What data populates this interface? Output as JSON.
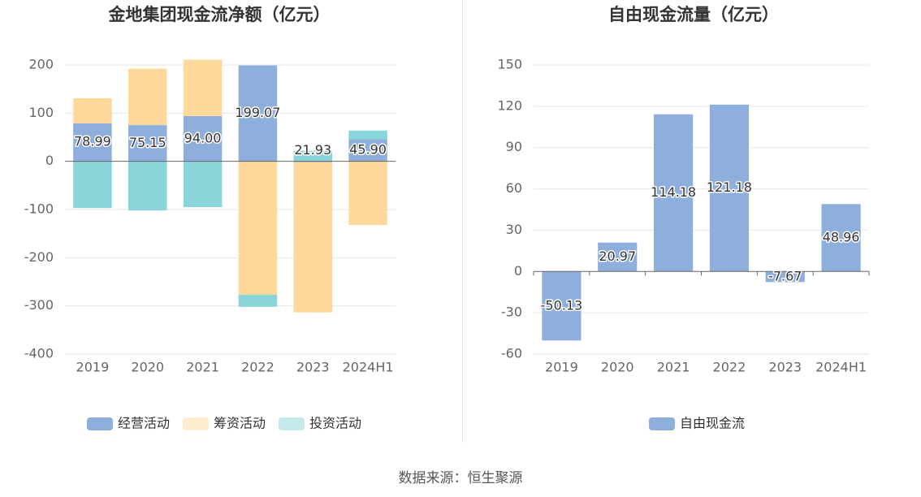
{
  "footer": {
    "source": "数据来源：恒生聚源"
  },
  "chart_data": [
    {
      "type": "bar",
      "stacked": true,
      "title": "金地集团现金流净额（亿元）",
      "categories": [
        "2019",
        "2020",
        "2021",
        "2022",
        "2023",
        "2024H1"
      ],
      "ylim": [
        -400,
        200
      ],
      "yticks": [
        200,
        100,
        0,
        -100,
        -200,
        -300,
        -400
      ],
      "grid": true,
      "legend_position": "bottom",
      "series": [
        {
          "name": "经营活动",
          "color": "#8eaedc",
          "values": [
            78.99,
            75.15,
            94.0,
            199.07,
            -1.5,
            45.9
          ]
        },
        {
          "name": "筹资活动",
          "color": "#ffd89c",
          "values": [
            52,
            117,
            117,
            -277,
            -312,
            -132
          ]
        },
        {
          "name": "投资活动",
          "color": "#8ad5d9",
          "values": [
            -97,
            -102,
            -95,
            -25,
            21.93,
            18
          ]
        }
      ],
      "data_labels": [
        "78.99",
        "75.15",
        "94.00",
        "199.07",
        "21.93",
        "45.90"
      ]
    },
    {
      "type": "bar",
      "title": "自由现金流量（亿元）",
      "categories": [
        "2019",
        "2020",
        "2021",
        "2022",
        "2023",
        "2024H1"
      ],
      "ylim": [
        -60,
        150
      ],
      "yticks": [
        150,
        120,
        90,
        60,
        30,
        0,
        -30,
        -60
      ],
      "grid": true,
      "legend_position": "bottom",
      "series": [
        {
          "name": "自由现金流",
          "color": "#8eaedc",
          "values": [
            -50.13,
            20.97,
            114.18,
            121.18,
            -7.67,
            48.96
          ]
        }
      ],
      "data_labels": [
        "-50.13",
        "20.97",
        "114.18",
        "121.18",
        "-7.67",
        "48.96"
      ]
    }
  ]
}
